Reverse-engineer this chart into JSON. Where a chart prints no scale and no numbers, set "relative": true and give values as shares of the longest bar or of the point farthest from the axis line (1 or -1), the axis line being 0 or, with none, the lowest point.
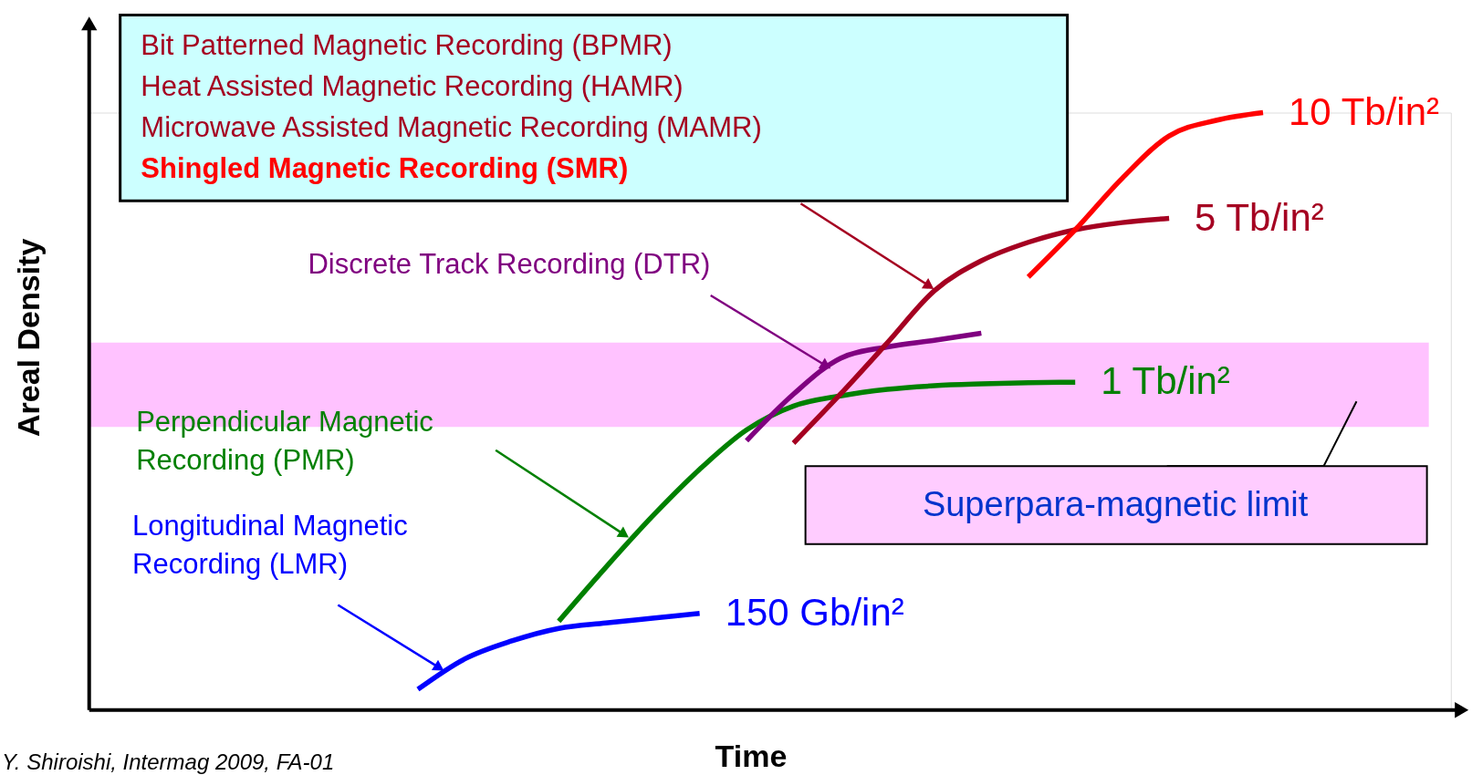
{
  "chart_data": {
    "type": "line",
    "relative": true,
    "xlabel": "Time",
    "ylabel": "Areal Density",
    "categories": [
      null,
      null,
      null,
      null,
      null,
      null,
      null,
      null,
      null,
      null,
      null,
      null,
      null,
      null,
      null,
      null,
      null,
      null,
      null,
      null,
      null,
      null,
      null,
      null,
      null,
      null,
      null,
      null,
      null,
      null
    ],
    "series": [
      {
        "name": "Longitudinal Magnetic Recording (LMR)",
        "color": "#0000ff",
        "values": [
          null,
          null,
          null,
          null,
          null,
          null,
          null,
          0.035,
          0.086,
          0.116,
          0.137,
          0.146,
          0.154,
          0.162,
          null,
          null,
          null,
          null,
          null,
          null,
          null,
          null,
          null,
          null,
          null,
          null,
          null,
          null,
          null,
          null
        ]
      },
      {
        "name": "Perpendicular Magnetic Recording (PMR)",
        "color": "#008000",
        "values": [
          null,
          null,
          null,
          null,
          null,
          null,
          null,
          null,
          null,
          null,
          0.149,
          0.239,
          0.325,
          0.403,
          0.469,
          0.509,
          0.526,
          0.537,
          0.543,
          0.546,
          0.548,
          0.549,
          null,
          null,
          null,
          null,
          null,
          null,
          null,
          null
        ]
      },
      {
        "name": "Discrete Track Recording (DTR)",
        "color": "#800080",
        "values": [
          null,
          null,
          null,
          null,
          null,
          null,
          null,
          null,
          null,
          null,
          null,
          null,
          null,
          null,
          0.451,
          0.529,
          0.589,
          0.608,
          0.619,
          0.631,
          null,
          null,
          null,
          null,
          null,
          null,
          null,
          null,
          null,
          null
        ]
      },
      {
        "color": "#a50021",
        "values": [
          null,
          null,
          null,
          null,
          null,
          null,
          null,
          null,
          null,
          null,
          null,
          null,
          null,
          null,
          null,
          0.447,
          0.529,
          0.615,
          0.702,
          0.752,
          0.783,
          0.804,
          0.816,
          0.823,
          null,
          null,
          null,
          null,
          null,
          null
        ]
      },
      {
        "color": "#ff0000",
        "values": [
          null,
          null,
          null,
          null,
          null,
          null,
          null,
          null,
          null,
          null,
          null,
          null,
          null,
          null,
          null,
          null,
          null,
          null,
          null,
          null,
          0.725,
          0.804,
          0.89,
          0.961,
          0.987,
          1.0,
          null,
          null,
          null,
          null
        ]
      }
    ],
    "bands": [
      {
        "axis": "y",
        "from": 0.474,
        "to": 0.615,
        "label": "Superpara-magnetic limit",
        "color": "#ff99ff"
      }
    ],
    "annotations": [
      "Bit Patterned Magnetic Recording (BPMR)",
      "Heat Assisted Magnetic Recording (HAMR)",
      "Microwave Assisted Magnetic Recording (MAMR)",
      "Shingled Magnetic Recording (SMR)",
      "150 Gb/in²",
      "1 Tb/in²",
      "5 Tb/in²",
      "10 Tb/in²",
      "Y. Shiroishi, Intermag 2009, FA-01"
    ]
  }
}
